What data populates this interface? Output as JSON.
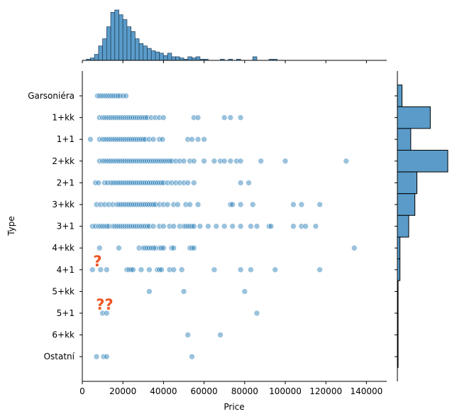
{
  "chart_data": {
    "type": "scatter",
    "xlabel": "Price",
    "ylabel": "Type",
    "x_ticks": [
      "0",
      "20000",
      "40000",
      "60000",
      "80000",
      "100000",
      "120000",
      "140000"
    ],
    "x_tick_values": [
      0,
      20000,
      40000,
      60000,
      80000,
      100000,
      120000,
      140000
    ],
    "xlim": [
      0,
      150000
    ],
    "categories": [
      "Garsoniéra",
      "1+kk",
      "1+1",
      "2+kk",
      "2+1",
      "3+kk",
      "3+1",
      "4+kk",
      "4+1",
      "5+kk",
      "5+1",
      "6+kk",
      "Ostatní"
    ],
    "point_color": "#1f77b4",
    "bar_color": "#5a9bc9",
    "annotation_color": "#ee5522",
    "grid": false,
    "annotations": [
      {
        "text": "?",
        "x": 7500,
        "category": "4+1"
      },
      {
        "text": "??",
        "x": 11000,
        "category": "5+1"
      }
    ],
    "points": [
      {
        "category": "Garsoniéra",
        "x": [
          7500,
          8500,
          9500,
          10500,
          11500,
          12500,
          13500,
          14500,
          15500,
          16500,
          17500,
          18500,
          20000,
          21500
        ]
      },
      {
        "category": "1+kk",
        "x": [
          8500,
          10000,
          11000,
          12000,
          13000,
          14000,
          15000,
          16000,
          17000,
          18000,
          19000,
          20000,
          21000,
          22000,
          23000,
          24000,
          25000,
          26000,
          27000,
          28000,
          29000,
          30000,
          31000,
          32000,
          34000,
          36000,
          38000,
          40000,
          55000,
          57000,
          70000,
          73000,
          78000
        ]
      },
      {
        "category": "1+1",
        "x": [
          4000,
          8500,
          10000,
          11000,
          12000,
          13000,
          14000,
          15000,
          16000,
          17000,
          18000,
          19000,
          20000,
          21000,
          22000,
          23000,
          24000,
          25000,
          26000,
          27000,
          28000,
          29000,
          30000,
          31000,
          33000,
          35000,
          38000,
          39500,
          52000,
          54000,
          57000,
          60000
        ]
      },
      {
        "category": "2+kk",
        "x": [
          8500,
          10000,
          11000,
          12000,
          13000,
          14000,
          15000,
          16000,
          17000,
          18000,
          19000,
          20000,
          21000,
          22000,
          23000,
          24000,
          25000,
          26000,
          27000,
          28000,
          29000,
          30000,
          31000,
          32000,
          33000,
          34000,
          35000,
          36000,
          37000,
          38000,
          39000,
          40000,
          41000,
          42000,
          43000,
          44000,
          46000,
          48000,
          50000,
          53000,
          55000,
          60000,
          65000,
          68000,
          70000,
          73000,
          76000,
          78000,
          88000,
          100000,
          130000
        ]
      },
      {
        "category": "2+1",
        "x": [
          6500,
          8000,
          11000,
          12500,
          14000,
          15000,
          16000,
          17000,
          18000,
          19000,
          20000,
          21000,
          22000,
          23000,
          24000,
          25000,
          26000,
          27000,
          28000,
          29000,
          30000,
          31000,
          32000,
          33000,
          34000,
          35000,
          36000,
          37000,
          38000,
          39000,
          40000,
          42000,
          44000,
          46000,
          48000,
          50000,
          52000,
          55000,
          78000,
          82000
        ]
      },
      {
        "category": "3+kk",
        "x": [
          7000,
          9000,
          11000,
          13000,
          15000,
          17000,
          18000,
          19000,
          20000,
          21000,
          22000,
          23000,
          24000,
          25000,
          26000,
          27000,
          28000,
          29000,
          30000,
          31000,
          32000,
          33000,
          34000,
          35000,
          36000,
          38000,
          40000,
          42000,
          45000,
          47000,
          51000,
          53000,
          57000,
          73000,
          74000,
          78000,
          84000,
          104000,
          108000,
          117000
        ]
      },
      {
        "category": "3+1",
        "x": [
          5000,
          6500,
          8000,
          9000,
          10000,
          11000,
          12000,
          13000,
          15000,
          16000,
          17000,
          18000,
          19000,
          20000,
          21000,
          22000,
          23000,
          24000,
          25000,
          26000,
          27000,
          28000,
          29000,
          30000,
          31000,
          32000,
          33000,
          35000,
          38000,
          40000,
          43000,
          45000,
          48000,
          50000,
          51000,
          52000,
          53000,
          54000,
          55000,
          58000,
          62000,
          66000,
          70000,
          74000,
          78000,
          83000,
          86000,
          92000,
          93000,
          104000,
          108000,
          110000,
          115000
        ]
      },
      {
        "category": "4+kk",
        "x": [
          8500,
          18000,
          28000,
          30000,
          31000,
          32000,
          33000,
          34000,
          35000,
          36000,
          38000,
          39000,
          40000,
          44000,
          45000,
          53000,
          54000,
          55000,
          134000
        ]
      },
      {
        "category": "4+1",
        "x": [
          5000,
          9000,
          12000,
          22000,
          23000,
          24000,
          25000,
          29000,
          33000,
          37000,
          38000,
          39000,
          43000,
          45000,
          49000,
          65000,
          78000,
          83000,
          95000,
          117000
        ]
      },
      {
        "category": "5+kk",
        "x": [
          33000,
          50000,
          80000
        ]
      },
      {
        "category": "5+1",
        "x": [
          10000,
          12000,
          86000
        ]
      },
      {
        "category": "6+kk",
        "x": [
          52000,
          68000
        ]
      },
      {
        "category": "Ostatní",
        "x": [
          7000,
          10500,
          12000,
          54000
        ]
      }
    ],
    "marginal_x_hist": {
      "bin_width": 2000,
      "bin_start": 2000,
      "counts": [
        1,
        2,
        5,
        12,
        18,
        28,
        40,
        42,
        38,
        34,
        28,
        24,
        18,
        14,
        12,
        10,
        8,
        7,
        6,
        4,
        6,
        3,
        3,
        2,
        1,
        3,
        2,
        3,
        1,
        1,
        0,
        0,
        0,
        1,
        0,
        1,
        0,
        1,
        0,
        0,
        0,
        3,
        0,
        0,
        0,
        1,
        1,
        0,
        0,
        0,
        0,
        0,
        0,
        0,
        0,
        0,
        0,
        0,
        0,
        0,
        0
      ]
    },
    "marginal_y_counts": [
      45,
      320,
      130,
      490,
      190,
      170,
      110,
      25,
      25,
      5,
      5,
      3,
      5
    ]
  }
}
